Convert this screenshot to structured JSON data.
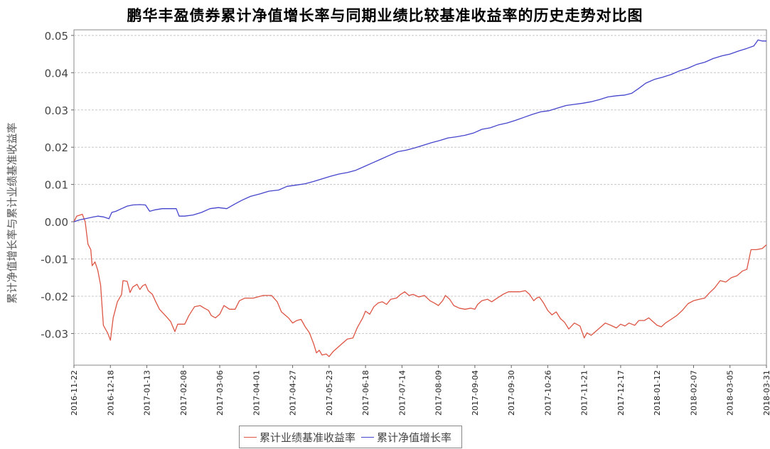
{
  "chart_data": {
    "type": "line",
    "title": "鹏华丰盈债券累计净值增长率与同期业绩比较基准收益率的历史走势对比图",
    "ylabel": "累计净值增长率与累计业绩基准收益率",
    "xlabel": "",
    "ylim": [
      -0.0385,
      0.0515
    ],
    "yticks": [
      "0.05",
      "0.04",
      "0.03",
      "0.02",
      "0.01",
      "0.00",
      "-0.01",
      "-0.02",
      "-0.03"
    ],
    "ytick_values": [
      0.05,
      0.04,
      0.03,
      0.02,
      0.01,
      0.0,
      -0.01,
      -0.02,
      -0.03
    ],
    "xlim": [
      "2016-11-22",
      "2018-03-31"
    ],
    "xticks": [
      "2016-11-22",
      "2016-12-18",
      "2017-01-13",
      "2017-02-08",
      "2017-03-06",
      "2017-04-01",
      "2017-04-27",
      "2017-05-23",
      "2017-06-18",
      "2017-07-14",
      "2017-08-09",
      "2017-09-04",
      "2017-09-30",
      "2017-10-26",
      "2017-11-21",
      "2017-12-17",
      "2018-01-12",
      "2018-02-07",
      "2018-03-05",
      "2018-03-31"
    ],
    "grid": true,
    "legend_position": "bottom",
    "series": [
      {
        "name": "累计业绩基准收益率",
        "color": "#dd5544",
        "points": [
          [
            "2016-11-22",
            0.0
          ],
          [
            "2016-11-24",
            0.0015
          ],
          [
            "2016-11-28",
            0.002
          ],
          [
            "2016-11-30",
            0.0
          ],
          [
            "2016-12-02",
            -0.006
          ],
          [
            "2016-12-04",
            -0.0075
          ],
          [
            "2016-12-05",
            -0.0118
          ],
          [
            "2016-12-07",
            -0.0108
          ],
          [
            "2016-12-09",
            -0.013
          ],
          [
            "2016-12-11",
            -0.017
          ],
          [
            "2016-12-13",
            -0.0278
          ],
          [
            "2016-12-16",
            -0.0298
          ],
          [
            "2016-12-18",
            -0.0318
          ],
          [
            "2016-12-20",
            -0.0258
          ],
          [
            "2016-12-23",
            -0.0215
          ],
          [
            "2016-12-26",
            -0.0195
          ],
          [
            "2016-12-27",
            -0.0158
          ],
          [
            "2016-12-30",
            -0.016
          ],
          [
            "2017-01-01",
            -0.019
          ],
          [
            "2017-01-03",
            -0.0175
          ],
          [
            "2017-01-06",
            -0.0168
          ],
          [
            "2017-01-08",
            -0.0182
          ],
          [
            "2017-01-10",
            -0.0172
          ],
          [
            "2017-01-12",
            -0.0168
          ],
          [
            "2017-01-14",
            -0.0185
          ],
          [
            "2017-01-17",
            -0.0195
          ],
          [
            "2017-01-19",
            -0.0212
          ],
          [
            "2017-01-22",
            -0.0235
          ],
          [
            "2017-01-27",
            -0.0255
          ],
          [
            "2017-01-30",
            -0.0268
          ],
          [
            "2017-02-02",
            -0.0295
          ],
          [
            "2017-02-04",
            -0.0275
          ],
          [
            "2017-02-09",
            -0.0275
          ],
          [
            "2017-02-12",
            -0.0252
          ],
          [
            "2017-02-16",
            -0.0228
          ],
          [
            "2017-02-20",
            -0.0225
          ],
          [
            "2017-02-23",
            -0.0232
          ],
          [
            "2017-02-26",
            -0.0238
          ],
          [
            "2017-02-28",
            -0.0252
          ],
          [
            "2017-03-03",
            -0.0258
          ],
          [
            "2017-03-06",
            -0.0248
          ],
          [
            "2017-03-09",
            -0.0225
          ],
          [
            "2017-03-13",
            -0.0235
          ],
          [
            "2017-03-17",
            -0.0235
          ],
          [
            "2017-03-20",
            -0.0212
          ],
          [
            "2017-03-24",
            -0.0205
          ],
          [
            "2017-03-30",
            -0.0205
          ],
          [
            "2017-04-02",
            -0.0202
          ],
          [
            "2017-04-06",
            -0.0198
          ],
          [
            "2017-04-12",
            -0.0198
          ],
          [
            "2017-04-16",
            -0.0215
          ],
          [
            "2017-04-19",
            -0.0242
          ],
          [
            "2017-04-24",
            -0.0258
          ],
          [
            "2017-04-27",
            -0.0272
          ],
          [
            "2017-04-30",
            -0.0265
          ],
          [
            "2017-05-03",
            -0.0262
          ],
          [
            "2017-05-06",
            -0.0282
          ],
          [
            "2017-05-09",
            -0.0298
          ],
          [
            "2017-05-12",
            -0.0328
          ],
          [
            "2017-05-14",
            -0.0352
          ],
          [
            "2017-05-16",
            -0.0345
          ],
          [
            "2017-05-18",
            -0.0358
          ],
          [
            "2017-05-21",
            -0.0355
          ],
          [
            "2017-05-23",
            -0.0362
          ],
          [
            "2017-05-26",
            -0.0348
          ],
          [
            "2017-05-29",
            -0.0338
          ],
          [
            "2017-06-01",
            -0.0328
          ],
          [
            "2017-06-05",
            -0.0315
          ],
          [
            "2017-06-09",
            -0.0312
          ],
          [
            "2017-06-12",
            -0.0285
          ],
          [
            "2017-06-16",
            -0.0258
          ],
          [
            "2017-06-18",
            -0.024
          ],
          [
            "2017-06-21",
            -0.0248
          ],
          [
            "2017-06-24",
            -0.0228
          ],
          [
            "2017-06-27",
            -0.0218
          ],
          [
            "2017-06-30",
            -0.0215
          ],
          [
            "2017-07-03",
            -0.0222
          ],
          [
            "2017-07-06",
            -0.0208
          ],
          [
            "2017-07-10",
            -0.0205
          ],
          [
            "2017-07-13",
            -0.0195
          ],
          [
            "2017-07-16",
            -0.0188
          ],
          [
            "2017-07-19",
            -0.0198
          ],
          [
            "2017-07-22",
            -0.0195
          ],
          [
            "2017-07-26",
            -0.0202
          ],
          [
            "2017-07-30",
            -0.0198
          ],
          [
            "2017-08-03",
            -0.0212
          ],
          [
            "2017-08-06",
            -0.0218
          ],
          [
            "2017-08-09",
            -0.0225
          ],
          [
            "2017-08-12",
            -0.0212
          ],
          [
            "2017-08-14",
            -0.0198
          ],
          [
            "2017-08-17",
            -0.0208
          ],
          [
            "2017-08-20",
            -0.0225
          ],
          [
            "2017-08-24",
            -0.0232
          ],
          [
            "2017-08-28",
            -0.0235
          ],
          [
            "2017-09-01",
            -0.0232
          ],
          [
            "2017-09-04",
            -0.0235
          ],
          [
            "2017-09-06",
            -0.0222
          ],
          [
            "2017-09-09",
            -0.0212
          ],
          [
            "2017-09-13",
            -0.0208
          ],
          [
            "2017-09-16",
            -0.0215
          ],
          [
            "2017-09-20",
            -0.0205
          ],
          [
            "2017-09-24",
            -0.0195
          ],
          [
            "2017-09-28",
            -0.0188
          ],
          [
            "2017-10-02",
            -0.0188
          ],
          [
            "2017-10-06",
            -0.0188
          ],
          [
            "2017-10-10",
            -0.0185
          ],
          [
            "2017-10-13",
            -0.0195
          ],
          [
            "2017-10-16",
            -0.0212
          ],
          [
            "2017-10-18",
            -0.0205
          ],
          [
            "2017-10-20",
            -0.0202
          ],
          [
            "2017-10-23",
            -0.0218
          ],
          [
            "2017-10-26",
            -0.0238
          ],
          [
            "2017-10-29",
            -0.025
          ],
          [
            "2017-11-01",
            -0.0242
          ],
          [
            "2017-11-04",
            -0.026
          ],
          [
            "2017-11-07",
            -0.027
          ],
          [
            "2017-11-10",
            -0.0288
          ],
          [
            "2017-11-14",
            -0.0272
          ],
          [
            "2017-11-18",
            -0.028
          ],
          [
            "2017-11-21",
            -0.0312
          ],
          [
            "2017-11-23",
            -0.0298
          ],
          [
            "2017-11-26",
            -0.0305
          ],
          [
            "2017-11-29",
            -0.0295
          ],
          [
            "2017-12-02",
            -0.0285
          ],
          [
            "2017-12-06",
            -0.0272
          ],
          [
            "2017-12-10",
            -0.0278
          ],
          [
            "2017-12-14",
            -0.0285
          ],
          [
            "2017-12-17",
            -0.0275
          ],
          [
            "2017-12-20",
            -0.028
          ],
          [
            "2017-12-23",
            -0.0272
          ],
          [
            "2017-12-27",
            -0.0278
          ],
          [
            "2017-12-30",
            -0.0265
          ],
          [
            "2018-01-03",
            -0.0265
          ],
          [
            "2018-01-06",
            -0.0258
          ],
          [
            "2018-01-09",
            -0.0268
          ],
          [
            "2018-01-12",
            -0.0278
          ],
          [
            "2018-01-15",
            -0.0282
          ],
          [
            "2018-01-18",
            -0.0272
          ],
          [
            "2018-01-22",
            -0.0262
          ],
          [
            "2018-01-26",
            -0.0252
          ],
          [
            "2018-01-30",
            -0.0238
          ],
          [
            "2018-02-03",
            -0.022
          ],
          [
            "2018-02-07",
            -0.0212
          ],
          [
            "2018-02-11",
            -0.0208
          ],
          [
            "2018-02-15",
            -0.0205
          ],
          [
            "2018-02-18",
            -0.0192
          ],
          [
            "2018-02-22",
            -0.0178
          ],
          [
            "2018-02-26",
            -0.0158
          ],
          [
            "2018-03-02",
            -0.0162
          ],
          [
            "2018-03-06",
            -0.015
          ],
          [
            "2018-03-10",
            -0.0145
          ],
          [
            "2018-03-14",
            -0.0132
          ],
          [
            "2018-03-17",
            -0.0128
          ],
          [
            "2018-03-20",
            -0.0075
          ],
          [
            "2018-03-24",
            -0.0075
          ],
          [
            "2018-03-28",
            -0.0072
          ],
          [
            "2018-03-31",
            -0.0062
          ]
        ]
      },
      {
        "name": "累计净值增长率",
        "color": "#4444cc",
        "points": [
          [
            "2016-11-22",
            0.0
          ],
          [
            "2016-11-26",
            0.0005
          ],
          [
            "2016-11-30",
            0.0008
          ],
          [
            "2016-12-05",
            0.0012
          ],
          [
            "2016-12-09",
            0.0015
          ],
          [
            "2016-12-13",
            0.0013
          ],
          [
            "2016-12-17",
            0.0008
          ],
          [
            "2016-12-19",
            0.0025
          ],
          [
            "2016-12-22",
            0.0028
          ],
          [
            "2016-12-26",
            0.0035
          ],
          [
            "2016-12-30",
            0.0042
          ],
          [
            "2017-01-03",
            0.0045
          ],
          [
            "2017-01-08",
            0.0046
          ],
          [
            "2017-01-12",
            0.0045
          ],
          [
            "2017-01-15",
            0.0028
          ],
          [
            "2017-01-19",
            0.0032
          ],
          [
            "2017-01-24",
            0.0035
          ],
          [
            "2017-01-29",
            0.0035
          ],
          [
            "2017-02-03",
            0.0035
          ],
          [
            "2017-02-05",
            0.0015
          ],
          [
            "2017-02-09",
            0.0015
          ],
          [
            "2017-02-15",
            0.0018
          ],
          [
            "2017-02-21",
            0.0025
          ],
          [
            "2017-02-27",
            0.0035
          ],
          [
            "2017-03-05",
            0.0038
          ],
          [
            "2017-03-11",
            0.0035
          ],
          [
            "2017-03-17",
            0.0048
          ],
          [
            "2017-03-22",
            0.0058
          ],
          [
            "2017-03-28",
            0.0068
          ],
          [
            "2017-04-04",
            0.0075
          ],
          [
            "2017-04-10",
            0.0082
          ],
          [
            "2017-04-17",
            0.0085
          ],
          [
            "2017-04-23",
            0.0095
          ],
          [
            "2017-04-29",
            0.0098
          ],
          [
            "2017-05-06",
            0.0102
          ],
          [
            "2017-05-12",
            0.0108
          ],
          [
            "2017-05-18",
            0.0115
          ],
          [
            "2017-05-24",
            0.0122
          ],
          [
            "2017-05-30",
            0.0128
          ],
          [
            "2017-06-05",
            0.0132
          ],
          [
            "2017-06-11",
            0.0138
          ],
          [
            "2017-06-17",
            0.0148
          ],
          [
            "2017-06-23",
            0.0158
          ],
          [
            "2017-06-29",
            0.0168
          ],
          [
            "2017-07-05",
            0.0178
          ],
          [
            "2017-07-11",
            0.0188
          ],
          [
            "2017-07-17",
            0.0192
          ],
          [
            "2017-07-23",
            0.0198
          ],
          [
            "2017-07-29",
            0.0205
          ],
          [
            "2017-08-04",
            0.0212
          ],
          [
            "2017-08-10",
            0.0218
          ],
          [
            "2017-08-16",
            0.0225
          ],
          [
            "2017-08-22",
            0.0228
          ],
          [
            "2017-08-28",
            0.0232
          ],
          [
            "2017-09-03",
            0.0238
          ],
          [
            "2017-09-09",
            0.0248
          ],
          [
            "2017-09-15",
            0.0252
          ],
          [
            "2017-09-21",
            0.026
          ],
          [
            "2017-09-27",
            0.0265
          ],
          [
            "2017-10-03",
            0.0272
          ],
          [
            "2017-10-09",
            0.028
          ],
          [
            "2017-10-15",
            0.0288
          ],
          [
            "2017-10-21",
            0.0295
          ],
          [
            "2017-10-27",
            0.0298
          ],
          [
            "2017-11-02",
            0.0305
          ],
          [
            "2017-11-08",
            0.0312
          ],
          [
            "2017-11-14",
            0.0315
          ],
          [
            "2017-11-20",
            0.0318
          ],
          [
            "2017-11-26",
            0.0322
          ],
          [
            "2017-12-02",
            0.0328
          ],
          [
            "2017-12-08",
            0.0335
          ],
          [
            "2017-12-14",
            0.0338
          ],
          [
            "2017-12-20",
            0.034
          ],
          [
            "2017-12-25",
            0.0345
          ],
          [
            "2017-12-30",
            0.0358
          ],
          [
            "2018-01-04",
            0.0372
          ],
          [
            "2018-01-10",
            0.0382
          ],
          [
            "2018-01-16",
            0.0388
          ],
          [
            "2018-01-22",
            0.0395
          ],
          [
            "2018-01-28",
            0.0405
          ],
          [
            "2018-02-03",
            0.0412
          ],
          [
            "2018-02-09",
            0.0422
          ],
          [
            "2018-02-15",
            0.0428
          ],
          [
            "2018-02-21",
            0.0438
          ],
          [
            "2018-02-27",
            0.0445
          ],
          [
            "2018-03-05",
            0.045
          ],
          [
            "2018-03-11",
            0.0458
          ],
          [
            "2018-03-17",
            0.0465
          ],
          [
            "2018-03-22",
            0.0472
          ],
          [
            "2018-03-25",
            0.0488
          ],
          [
            "2018-03-28",
            0.0485
          ],
          [
            "2018-03-31",
            0.0485
          ]
        ]
      }
    ]
  },
  "legend": {
    "items": [
      {
        "label": "累计业绩基准收益率",
        "color": "#dd5544"
      },
      {
        "label": "累计净值增长率",
        "color": "#4444cc"
      }
    ]
  }
}
